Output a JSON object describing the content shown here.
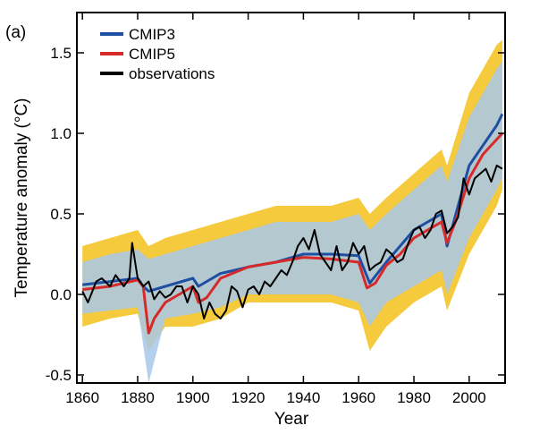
{
  "chart_data": {
    "type": "line",
    "panel_label": "(a)",
    "xlabel": "Year",
    "ylabel": "Temperature anomaly (°C)",
    "xlim": [
      1858,
      2013
    ],
    "ylim": [
      -0.55,
      1.75
    ],
    "x_ticks": [
      1860,
      1880,
      1900,
      1920,
      1940,
      1960,
      1980,
      2000
    ],
    "y_ticks": [
      -0.5,
      0.0,
      0.5,
      1.0,
      1.5
    ],
    "y_tick_labels": [
      "-0.5",
      "0.0",
      "0.5",
      "1.0",
      "1.5"
    ],
    "legend": {
      "position": "top-left",
      "entries": [
        {
          "label": "CMIP3",
          "color": "#1f4fa3"
        },
        {
          "label": "CMIP5",
          "color": "#d62a2a"
        },
        {
          "label": "observations",
          "color": "#000000"
        }
      ]
    },
    "colors": {
      "cmip3_spread": "#a8c8ea",
      "cmip3_mean": "#1f4fa3",
      "cmip5_spread": "#f5c11b",
      "cmip5_mean": "#d62a2a",
      "observations": "#000000"
    },
    "series": [
      {
        "name": "CMIP3",
        "x": [
          1860,
          1870,
          1880,
          1882,
          1884,
          1890,
          1900,
          1902,
          1910,
          1920,
          1930,
          1940,
          1950,
          1960,
          1964,
          1970,
          1980,
          1990,
          1992,
          2000,
          2010,
          2012
        ],
        "values": [
          0.06,
          0.08,
          0.1,
          0.05,
          0.02,
          0.05,
          0.1,
          0.05,
          0.13,
          0.17,
          0.2,
          0.25,
          0.25,
          0.24,
          0.07,
          0.2,
          0.4,
          0.5,
          0.3,
          0.8,
          1.05,
          1.12
        ]
      },
      {
        "name": "CMIP5",
        "x": [
          1860,
          1870,
          1880,
          1882,
          1884,
          1886,
          1890,
          1900,
          1902,
          1905,
          1910,
          1920,
          1930,
          1940,
          1950,
          1960,
          1963,
          1966,
          1970,
          1975,
          1980,
          1990,
          1992,
          1995,
          2000,
          2005,
          2012
        ],
        "values": [
          0.03,
          0.05,
          0.09,
          0.05,
          -0.24,
          -0.15,
          -0.05,
          0.05,
          -0.05,
          -0.02,
          0.1,
          0.17,
          0.2,
          0.23,
          0.22,
          0.2,
          0.04,
          0.07,
          0.18,
          0.25,
          0.35,
          0.45,
          0.32,
          0.45,
          0.72,
          0.87,
          1.0
        ]
      },
      {
        "name": "observations",
        "x": [
          1860,
          1862,
          1865,
          1867,
          1870,
          1872,
          1875,
          1877,
          1878,
          1880,
          1882,
          1884,
          1886,
          1888,
          1890,
          1892,
          1894,
          1896,
          1898,
          1900,
          1902,
          1904,
          1906,
          1908,
          1910,
          1912,
          1914,
          1916,
          1918,
          1920,
          1922,
          1924,
          1926,
          1928,
          1930,
          1932,
          1934,
          1936,
          1938,
          1940,
          1942,
          1944,
          1946,
          1948,
          1950,
          1952,
          1954,
          1956,
          1958,
          1960,
          1962,
          1964,
          1966,
          1968,
          1970,
          1972,
          1974,
          1976,
          1978,
          1980,
          1982,
          1984,
          1986,
          1988,
          1990,
          1992,
          1994,
          1996,
          1998,
          2000,
          2002,
          2004,
          2006,
          2008,
          2010,
          2012
        ],
        "values": [
          0.02,
          -0.05,
          0.08,
          0.1,
          0.05,
          0.12,
          0.05,
          0.1,
          0.32,
          0.1,
          0.05,
          0.08,
          -0.03,
          0.02,
          -0.02,
          0.0,
          0.05,
          0.05,
          -0.05,
          0.05,
          0.0,
          -0.15,
          -0.05,
          -0.12,
          -0.15,
          -0.1,
          0.05,
          0.02,
          -0.08,
          0.03,
          0.05,
          0.0,
          0.08,
          0.05,
          0.1,
          0.15,
          0.12,
          0.2,
          0.3,
          0.35,
          0.28,
          0.4,
          0.25,
          0.2,
          0.15,
          0.3,
          0.15,
          0.2,
          0.32,
          0.25,
          0.3,
          0.15,
          0.18,
          0.2,
          0.28,
          0.25,
          0.2,
          0.22,
          0.32,
          0.4,
          0.42,
          0.35,
          0.4,
          0.5,
          0.52,
          0.38,
          0.42,
          0.48,
          0.72,
          0.62,
          0.72,
          0.75,
          0.78,
          0.7,
          0.8,
          0.78
        ]
      }
    ],
    "spread_bands": [
      {
        "name": "CMIP5 range",
        "x": [
          1860,
          1870,
          1880,
          1884,
          1890,
          1900,
          1910,
          1920,
          1930,
          1940,
          1950,
          1960,
          1964,
          1970,
          1980,
          1990,
          1992,
          2000,
          2010,
          2012
        ],
        "lower": [
          -0.2,
          -0.15,
          -0.12,
          -0.35,
          -0.2,
          -0.2,
          -0.15,
          -0.05,
          -0.05,
          -0.05,
          -0.05,
          -0.1,
          -0.35,
          -0.2,
          -0.05,
          0.05,
          -0.1,
          0.25,
          0.55,
          0.65
        ],
        "upper": [
          0.3,
          0.35,
          0.4,
          0.3,
          0.35,
          0.4,
          0.45,
          0.5,
          0.55,
          0.55,
          0.55,
          0.6,
          0.5,
          0.6,
          0.75,
          0.9,
          0.8,
          1.25,
          1.55,
          1.58
        ]
      },
      {
        "name": "CMIP3 range",
        "x": [
          1860,
          1870,
          1880,
          1884,
          1890,
          1900,
          1910,
          1920,
          1930,
          1940,
          1950,
          1960,
          1964,
          1970,
          1980,
          1990,
          1992,
          2000,
          2010,
          2012
        ],
        "lower": [
          -0.12,
          -0.1,
          -0.08,
          -0.55,
          -0.15,
          -0.12,
          -0.08,
          0.0,
          0.0,
          0.0,
          0.0,
          -0.05,
          -0.2,
          -0.05,
          0.05,
          0.15,
          0.0,
          0.35,
          0.65,
          0.72
        ],
        "upper": [
          0.2,
          0.25,
          0.28,
          0.22,
          0.25,
          0.3,
          0.35,
          0.4,
          0.45,
          0.45,
          0.45,
          0.5,
          0.4,
          0.5,
          0.65,
          0.8,
          0.7,
          1.1,
          1.4,
          1.45
        ]
      }
    ]
  }
}
